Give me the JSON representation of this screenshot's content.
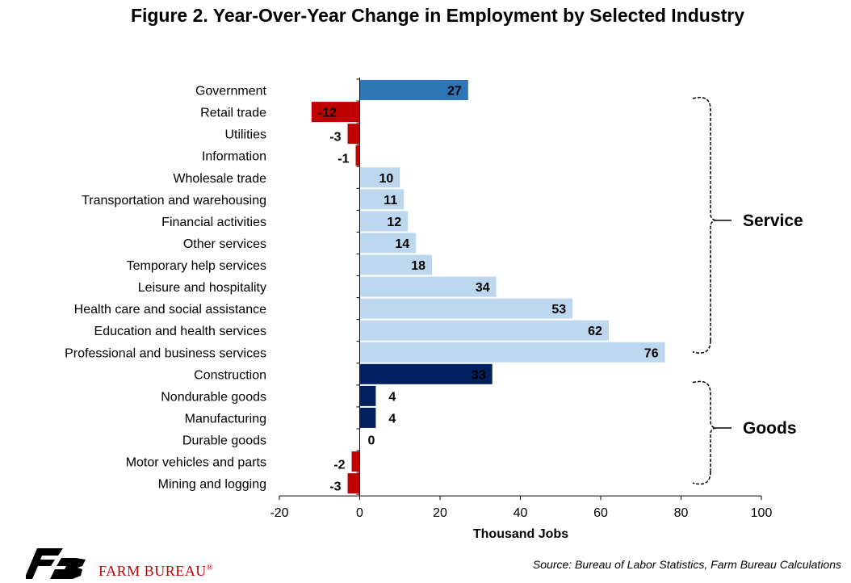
{
  "title": "Figure 2. Year-Over-Year Change in Employment by Selected Industry",
  "source": "Source: Bureau of Labor Statistics, Farm Bureau Calculations",
  "logo": {
    "text": "FARM BUREAU",
    "mark": "®"
  },
  "colors": {
    "government": "#2e75b6",
    "service": "#bdd7ee",
    "goods": "#002060",
    "negative": "#c00000"
  },
  "chart_data": {
    "type": "bar",
    "orientation": "horizontal",
    "title": "Figure 2. Year-Over-Year Change in Employment by Selected Industry",
    "xlabel": "Thousand Jobs",
    "ylabel": "",
    "xlim": [
      -20,
      100
    ],
    "xticks": [
      -20,
      0,
      20,
      40,
      60,
      80,
      100
    ],
    "grid": false,
    "categories": [
      "Government",
      "Retail trade",
      "Utilities",
      "Information",
      "Wholesale trade",
      "Transportation and warehousing",
      "Financial activities",
      "Other services",
      "Temporary help services",
      "Leisure and hospitality",
      "Health care and social assistance",
      "Education and health services",
      "Professional and business services",
      "Construction",
      "Nondurable goods",
      "Manufacturing",
      "Durable goods",
      "Motor vehicles and parts",
      "Mining and logging"
    ],
    "values": [
      27,
      -12,
      -3,
      -1,
      10,
      11,
      12,
      14,
      18,
      34,
      53,
      62,
      76,
      33,
      4,
      4,
      0,
      -2,
      -3
    ],
    "groups": [
      "government",
      "service",
      "service",
      "service",
      "service",
      "service",
      "service",
      "service",
      "service",
      "service",
      "service",
      "service",
      "service",
      "goods",
      "goods",
      "goods",
      "goods",
      "goods",
      "goods"
    ],
    "brackets": [
      {
        "label": "Service",
        "from": 0,
        "to": 12
      },
      {
        "label": "Goods",
        "from": 13,
        "to": 18
      }
    ]
  }
}
